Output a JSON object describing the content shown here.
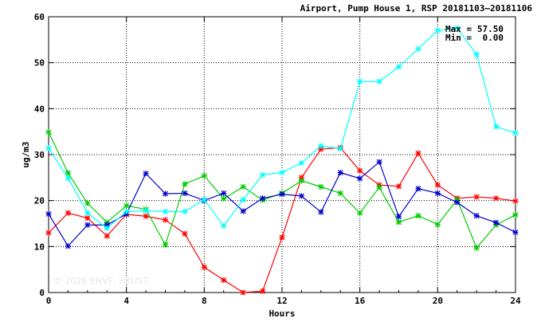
{
  "chart_data": {
    "type": "line",
    "title": "Airport, Pump House 1, RSP 20181103–20181106",
    "xlabel": "Hours",
    "ylabel": "ug/m3",
    "xlim": [
      0,
      24
    ],
    "ylim": [
      0,
      60
    ],
    "xticks": [
      0,
      4,
      8,
      12,
      16,
      20,
      24
    ],
    "yticks": [
      0,
      10,
      20,
      30,
      40,
      50,
      60
    ],
    "grid": true,
    "stats": {
      "max_label": "Max =",
      "max_value": "57.50",
      "min_label": "Min =",
      "min_value": "0.00"
    },
    "watermark": "© 2026 ENVF, HKUST",
    "x": [
      0,
      1,
      2,
      3,
      4,
      5,
      6,
      7,
      8,
      9,
      10,
      11,
      12,
      13,
      14,
      15,
      16,
      17,
      18,
      19,
      20,
      21,
      22,
      23,
      24
    ],
    "series": [
      {
        "color": "#ff0000",
        "values": [
          13.0,
          17.3,
          16.2,
          12.3,
          17.0,
          16.6,
          15.8,
          12.8,
          5.5,
          2.7,
          0.0,
          0.3,
          12.0,
          25.0,
          31.2,
          31.5,
          26.5,
          23.4,
          23.1,
          30.3,
          23.4,
          20.5,
          20.8,
          20.5,
          19.9
        ]
      },
      {
        "color": "#00cc00",
        "values": [
          34.9,
          26.0,
          19.4,
          15.3,
          18.9,
          18.1,
          10.4,
          23.6,
          25.4,
          20.4,
          23.0,
          20.1,
          21.6,
          24.3,
          23.0,
          21.6,
          17.3,
          22.9,
          15.3,
          16.7,
          14.8,
          20.2,
          9.7,
          14.7,
          16.9
        ]
      },
      {
        "color": "#0000cc",
        "values": [
          17.1,
          10.1,
          14.7,
          14.7,
          17.1,
          25.9,
          21.5,
          21.6,
          20.0,
          21.6,
          17.7,
          20.5,
          21.4,
          21.0,
          17.5,
          26.1,
          24.8,
          28.4,
          16.5,
          22.6,
          21.6,
          19.6,
          16.7,
          15.2,
          13.1
        ]
      },
      {
        "color": "#00ffff",
        "values": [
          31.4,
          24.9,
          17.3,
          14.0,
          17.6,
          17.8,
          17.6,
          17.6,
          20.2,
          14.5,
          20.2,
          25.6,
          26.1,
          28.2,
          31.9,
          31.3,
          45.9,
          45.9,
          49.1,
          53.0,
          57.0,
          57.5,
          51.8,
          36.1,
          34.7
        ]
      }
    ]
  }
}
